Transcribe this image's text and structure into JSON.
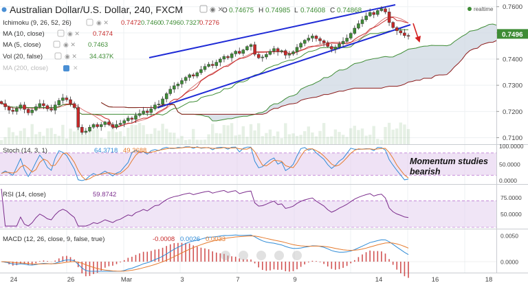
{
  "header": {
    "title": "Australian Dollar/U.S. Dollar, 240, FXCM",
    "ohlc": [
      {
        "label": "O",
        "value": "0.74675"
      },
      {
        "label": "H",
        "value": "0.74985"
      },
      {
        "label": "L",
        "value": "0.74608"
      },
      {
        "label": "C",
        "value": "0.74868"
      }
    ],
    "realtime": "realtime"
  },
  "indicators": {
    "ichimoku": {
      "label": "Ichimoku (9, 26, 52, 26)",
      "values": [
        "0.7472",
        "0.7460",
        "0.7496",
        "0.7327",
        "0.7276"
      ]
    },
    "ma10": {
      "label": "MA (10, close)",
      "value": "0.7474"
    },
    "ma5": {
      "label": "MA (5, close)",
      "value": "0.7463"
    },
    "vol": {
      "label": "Vol (20, false)",
      "value": "34.437K"
    },
    "ma200": {
      "label": "MA (200, close)"
    }
  },
  "price_axis": {
    "ticks": [
      "0.7600",
      "0.7500",
      "0.7400",
      "0.7300",
      "0.7200",
      "0.7100"
    ],
    "current": "0.7496"
  },
  "panes": {
    "stoch": {
      "label": "Stoch (14, 3, 1)",
      "k": "64.3718",
      "d": "49.3688",
      "ticks": [
        "100.0000",
        "50.0000",
        "0.0000"
      ]
    },
    "rsi": {
      "label": "RSI (14, close)",
      "value": "59.8742",
      "ticks": [
        "75.0000",
        "50.0000"
      ]
    },
    "macd": {
      "label": "MACD (12, 26, close, 9, false, true)",
      "values": [
        "-0.0008",
        "0.0026",
        "0.0033"
      ],
      "ticks": [
        "0.0050",
        "0.0000"
      ]
    }
  },
  "x_axis": [
    "24",
    "26",
    "Mar",
    "3",
    "7",
    "9",
    "14",
    "16",
    "18"
  ],
  "annotation": {
    "line1": "Momentum studies",
    "line2": "bearish"
  },
  "colors": {
    "up": "#3e8c35",
    "down": "#c62828",
    "trendline": "#1f2bd6",
    "cloud": "#cfd8e3",
    "stoch_k": "#2f8bd6",
    "stoch_d": "#e57a2d",
    "rsi": "#7b2c8c",
    "band": "#e4cfee",
    "macd_line": "#2f8bd6",
    "signal_line": "#e57a2d"
  },
  "chart_data": {
    "type": "candlestick",
    "symbol": "AUD/USD",
    "interval": "240",
    "ylim": [
      0.7075,
      0.7615
    ],
    "x_labels": [
      "24",
      "26",
      "Mar",
      "3",
      "7",
      "9",
      "14",
      "16",
      "18"
    ],
    "close": [
      0.723,
      0.7218,
      0.7205,
      0.72,
      0.7212,
      0.7225,
      0.7208,
      0.7195,
      0.7205,
      0.7218,
      0.723,
      0.7222,
      0.721,
      0.7205,
      0.7225,
      0.7242,
      0.7252,
      0.7245,
      0.723,
      0.7215,
      0.714,
      0.712,
      0.7125,
      0.714,
      0.715,
      0.7142,
      0.715,
      0.716,
      0.715,
      0.714,
      0.715,
      0.7155,
      0.7165,
      0.7175,
      0.717,
      0.7185,
      0.7192,
      0.7202,
      0.7196,
      0.721,
      0.7225,
      0.7228,
      0.7248,
      0.7268,
      0.7285,
      0.7298,
      0.7305,
      0.7318,
      0.733,
      0.734,
      0.7335,
      0.7348,
      0.736,
      0.7372,
      0.738,
      0.7375,
      0.7388,
      0.74,
      0.741,
      0.7405,
      0.742,
      0.743,
      0.7422,
      0.7435,
      0.7448,
      0.7455,
      0.7418,
      0.7405,
      0.7408,
      0.7418,
      0.743,
      0.744,
      0.7428,
      0.7432,
      0.7415,
      0.742,
      0.7428,
      0.7445,
      0.746,
      0.7472,
      0.748,
      0.7488,
      0.7478,
      0.747,
      0.7462,
      0.7448,
      0.7438,
      0.7446,
      0.7458,
      0.7468,
      0.748,
      0.7498,
      0.7518,
      0.7535,
      0.755,
      0.7565,
      0.7578,
      0.757,
      0.7585,
      0.7592,
      0.758,
      0.754,
      0.752,
      0.7508,
      0.75,
      0.749,
      0.7487
    ],
    "series": [
      {
        "name": "Stoch %K",
        "last": 64.3718
      },
      {
        "name": "Stoch %D",
        "last": 49.3688
      },
      {
        "name": "RSI",
        "last": 59.8742
      },
      {
        "name": "MACD",
        "values": [
          -0.0008,
          0.0026,
          0.0033
        ]
      }
    ]
  }
}
